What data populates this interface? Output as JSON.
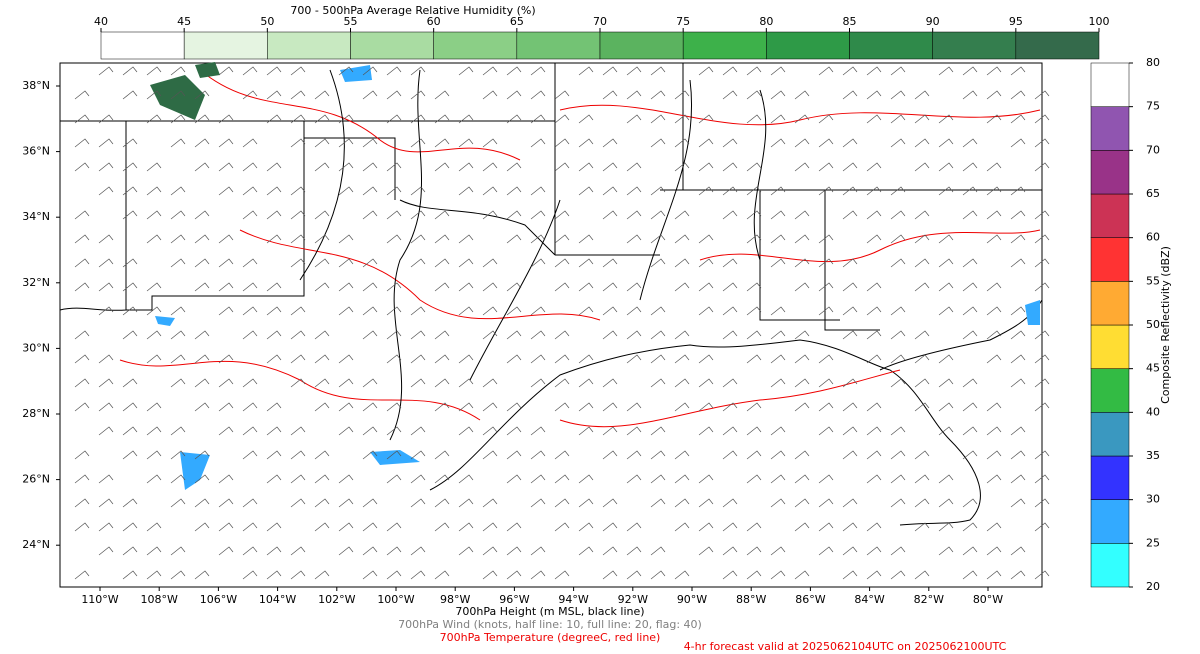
{
  "top_colorbar": {
    "title": "700 - 500hPa Average Relative Humidity (%)",
    "ticks": [
      40,
      45,
      50,
      55,
      60,
      65,
      70,
      75,
      80,
      85,
      90,
      95,
      100
    ],
    "colors": [
      "#ffffff",
      "#e5f4e1",
      "#c8e9c1",
      "#a9dca2",
      "#8bcf86",
      "#73c374",
      "#5bb35f",
      "#3db14a",
      "#2e9a47",
      "#2f8a4a",
      "#347e4e",
      "#346a4b"
    ]
  },
  "right_colorbar": {
    "title": "Composite Reflectivity (dBZ)",
    "ticks": [
      20,
      25,
      30,
      35,
      40,
      45,
      50,
      55,
      60,
      65,
      70,
      75,
      80
    ],
    "colors": [
      "#33ffff",
      "#33aaff",
      "#3333ff",
      "#3a98c0",
      "#33bb44",
      "#ffdd33",
      "#ffaa33",
      "#ff3333",
      "#cc3355",
      "#993388",
      "#9055b0",
      "#ffffff"
    ]
  },
  "map": {
    "lat_labels": [
      "38°N",
      "36°N",
      "34°N",
      "32°N",
      "30°N",
      "28°N",
      "26°N",
      "24°N"
    ],
    "lon_labels": [
      "110°W",
      "108°W",
      "106°W",
      "104°W",
      "102°W",
      "100°W",
      "98°W",
      "96°W",
      "94°W",
      "92°W",
      "90°W",
      "88°W",
      "86°W",
      "84°W",
      "82°W",
      "80°W"
    ]
  },
  "captions": {
    "height": "700hPa Height (m MSL, black line)",
    "wind": "700hPa Wind (knots, half line: 10, full line: 20, flag: 40)",
    "temperature": "700hPa Temperature (degreeC, red line)",
    "valid": "4-hr forecast valid at 2025062104UTC on 2025062100UTC"
  }
}
